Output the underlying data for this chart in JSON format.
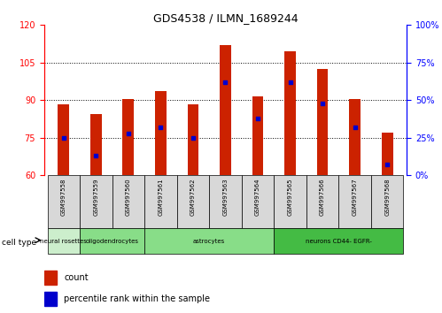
{
  "title": "GDS4538 / ILMN_1689244",
  "samples": [
    "GSM997558",
    "GSM997559",
    "GSM997560",
    "GSM997561",
    "GSM997562",
    "GSM997563",
    "GSM997564",
    "GSM997565",
    "GSM997566",
    "GSM997567",
    "GSM997568"
  ],
  "bar_heights": [
    88.5,
    84.5,
    90.5,
    93.5,
    88.5,
    112.0,
    91.5,
    109.5,
    102.5,
    90.5,
    77.0
  ],
  "percentile_values": [
    25,
    13,
    28,
    32,
    25,
    62,
    38,
    62,
    48,
    32,
    7
  ],
  "bar_color": "#cc2200",
  "percentile_color": "#0000cc",
  "ylim_left": [
    60,
    120
  ],
  "ylim_right": [
    0,
    100
  ],
  "yticks_left": [
    60,
    75,
    90,
    105,
    120
  ],
  "yticks_right": [
    0,
    25,
    50,
    75,
    100
  ],
  "cell_groups": [
    {
      "label": "neural rosettes",
      "start": 0,
      "end": 1,
      "color": "#cceecc"
    },
    {
      "label": "oligodendrocytes",
      "start": 1,
      "end": 3,
      "color": "#88dd88"
    },
    {
      "label": "astrocytes",
      "start": 3,
      "end": 7,
      "color": "#88dd88"
    },
    {
      "label": "neurons CD44- EGFR-",
      "start": 7,
      "end": 11,
      "color": "#44bb44"
    }
  ],
  "bar_width": 0.35
}
